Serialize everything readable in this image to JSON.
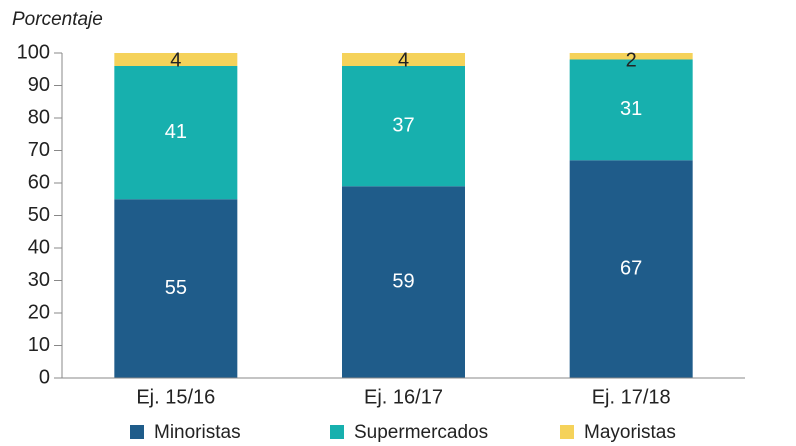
{
  "chart_data": {
    "type": "stacked_bar",
    "y_axis_label": "Porcentaje",
    "categories": [
      "Ej. 15/16",
      "Ej. 16/17",
      "Ej. 17/18"
    ],
    "series": [
      {
        "name": "Minoristas",
        "color": "#1f5c8a",
        "values": [
          55,
          59,
          67
        ]
      },
      {
        "name": "Supermercados",
        "color": "#17b0ae",
        "values": [
          41,
          37,
          31
        ]
      },
      {
        "name": "Mayoristas",
        "color": "#f5d25a",
        "values": [
          4,
          4,
          2
        ]
      }
    ],
    "ylim": [
      0,
      100
    ],
    "yticks": [
      0,
      10,
      20,
      30,
      40,
      50,
      60,
      70,
      80,
      90,
      100
    ],
    "legend": "bottom"
  }
}
